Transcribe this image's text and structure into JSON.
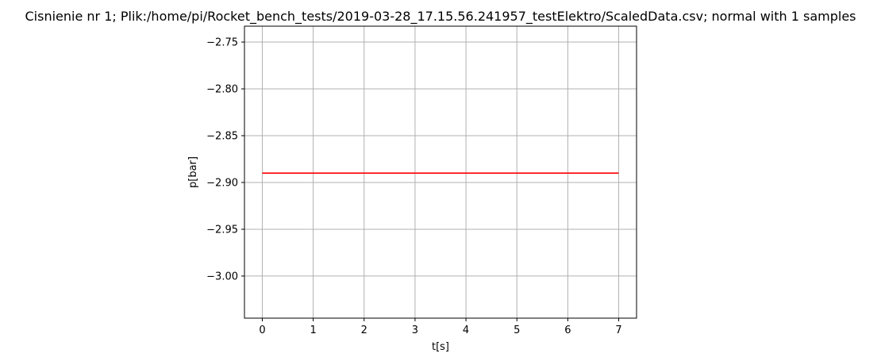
{
  "chart_data": {
    "type": "line",
    "title": "Cisnienie nr 1; Plik:/home/pi/Rocket_bench_tests/2019-03-28_17.15.56.241957_testElektro/ScaledData.csv; normal with 1 samples",
    "xlabel": "t[s]",
    "ylabel": "p[bar]",
    "x": [
      0,
      1,
      2,
      3,
      4,
      5,
      6,
      7
    ],
    "series": [
      {
        "values": [
          -2.89,
          -2.89,
          -2.89,
          -2.89,
          -2.89,
          -2.89,
          -2.89,
          -2.89
        ],
        "color": "#ff0000"
      }
    ],
    "xlim": [
      -0.35,
      7.35
    ],
    "ylim": [
      -3.045,
      -2.733
    ],
    "xticks": [
      0,
      1,
      2,
      3,
      4,
      5,
      6,
      7
    ],
    "xtick_labels": [
      "0",
      "1",
      "2",
      "3",
      "4",
      "5",
      "6",
      "7"
    ],
    "yticks": [
      -2.75,
      -2.8,
      -2.85,
      -2.9,
      -2.95,
      -3.0
    ],
    "ytick_labels": [
      "−2.75",
      "−2.80",
      "−2.85",
      "−2.90",
      "−2.95",
      "−3.00"
    ],
    "grid": true,
    "grid_color": "#b0b0b0",
    "legend": "none"
  }
}
